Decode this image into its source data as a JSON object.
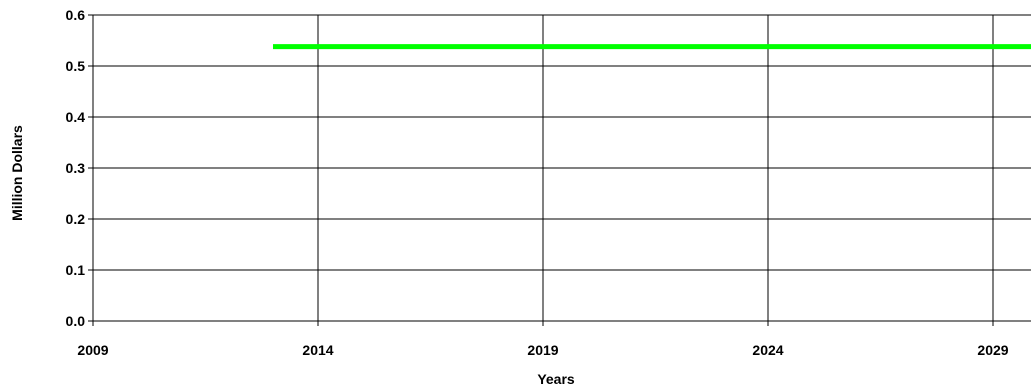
{
  "chart_data": {
    "type": "line",
    "title": "",
    "xlabel": "Years",
    "ylabel": "Million Dollars",
    "xlim": [
      2009,
      2030
    ],
    "ylim": [
      0,
      0.6
    ],
    "x_ticks": [
      2009,
      2014,
      2019,
      2024,
      2029
    ],
    "x_tick_labels": [
      "2009",
      "2014",
      "2019",
      "2024",
      "2029"
    ],
    "y_ticks": [
      0,
      0.1,
      0.2,
      0.3,
      0.4,
      0.5,
      0.6
    ],
    "y_tick_labels": [
      "0.0",
      "0.1",
      "0.2",
      "0.3",
      "0.4",
      "0.5",
      "0.6"
    ],
    "grid": true,
    "legend": "none",
    "series": [
      {
        "color": "#00ff00",
        "x": [
          2013,
          2030
        ],
        "y": [
          0.538,
          0.538
        ]
      }
    ]
  }
}
